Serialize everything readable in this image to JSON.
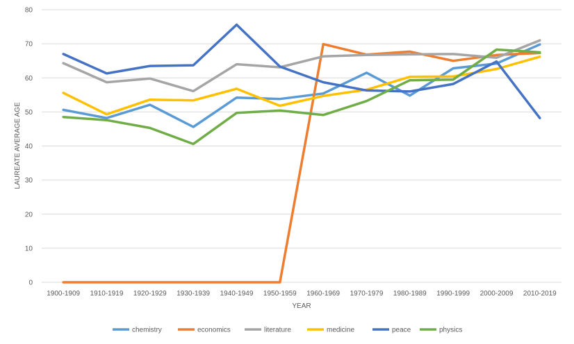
{
  "chart_data": {
    "type": "line",
    "title": "",
    "xlabel": "YEAR",
    "ylabel": "LAUREATE AVERAGE AGE",
    "ylim": [
      0,
      80
    ],
    "yticks": [
      0,
      10,
      20,
      30,
      40,
      50,
      60,
      70,
      80
    ],
    "grid": "horizontal",
    "legend": "bottom",
    "categories": [
      "1900-1909",
      "1910-1919",
      "1920-1929",
      "1930-1939",
      "1940-1949",
      "1950-1959",
      "1960-1969",
      "1970-1979",
      "1980-1989",
      "1990-1999",
      "2000-2009",
      "2010-2019"
    ],
    "series": [
      {
        "name": "chemistry",
        "color": "#5B9BD5",
        "values": [
          50.6,
          48.2,
          52.1,
          45.6,
          54.2,
          53.8,
          55.4,
          61.5,
          54.8,
          62.8,
          64.2,
          69.8
        ]
      },
      {
        "name": "economics",
        "color": "#ED7D31",
        "values": [
          0,
          0,
          0,
          0,
          0,
          0,
          69.9,
          66.8,
          67.7,
          65.0,
          66.7,
          67.3
        ]
      },
      {
        "name": "literature",
        "color": "#A5A5A5",
        "values": [
          64.3,
          58.7,
          59.8,
          56.1,
          64.0,
          63.1,
          66.3,
          66.7,
          66.9,
          67.0,
          65.9,
          71.0
        ]
      },
      {
        "name": "medicine",
        "color": "#FFC000",
        "values": [
          55.6,
          49.3,
          53.6,
          53.4,
          56.8,
          51.8,
          54.7,
          56.5,
          60.3,
          60.4,
          62.6,
          66.2
        ]
      },
      {
        "name": "peace",
        "color": "#4472C4",
        "values": [
          67.0,
          61.3,
          63.5,
          63.7,
          75.6,
          63.3,
          58.7,
          56.3,
          56.0,
          58.2,
          64.8,
          48.2
        ]
      },
      {
        "name": "physics",
        "color": "#70AD47",
        "values": [
          48.5,
          47.6,
          45.3,
          40.6,
          49.7,
          50.4,
          49.1,
          53.2,
          59.3,
          59.5,
          68.3,
          67.5
        ]
      }
    ]
  }
}
